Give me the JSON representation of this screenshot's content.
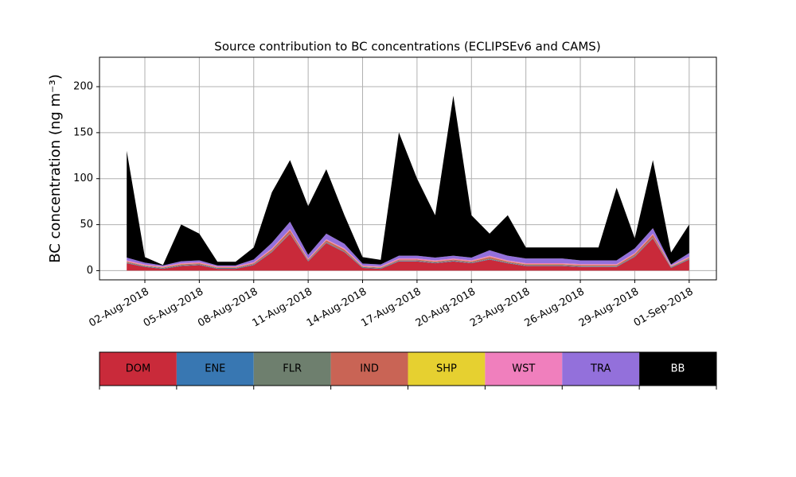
{
  "chart_data": {
    "type": "stacked_area",
    "title": "Source contribution to BC concentrations (ECLIPSEv6 and CAMS)",
    "y_label": "BC concentration (ng m⁻³)",
    "x": [
      "2018-08-01",
      "2018-08-02",
      "2018-08-03",
      "2018-08-04",
      "2018-08-05",
      "2018-08-06",
      "2018-08-07",
      "2018-08-08",
      "2018-08-09",
      "2018-08-10",
      "2018-08-11",
      "2018-08-12",
      "2018-08-13",
      "2018-08-14",
      "2018-08-15",
      "2018-08-16",
      "2018-08-17",
      "2018-08-18",
      "2018-08-19",
      "2018-08-20",
      "2018-08-21",
      "2018-08-22",
      "2018-08-23",
      "2018-08-24",
      "2018-08-25",
      "2018-08-26",
      "2018-08-27",
      "2018-08-28",
      "2018-08-29",
      "2018-08-30",
      "2018-08-31",
      "2018-09-01"
    ],
    "series": [
      {
        "name": "DOM",
        "color": "#c92a3a",
        "values": [
          8,
          4,
          2,
          5,
          6,
          2,
          2,
          6,
          20,
          40,
          10,
          30,
          20,
          3,
          2,
          10,
          10,
          8,
          10,
          8,
          12,
          8,
          5,
          5,
          5,
          4,
          4,
          4,
          15,
          35,
          3,
          12
        ]
      },
      {
        "name": "ENE",
        "color": "#3877b2",
        "values": [
          0.5,
          0.5,
          0.5,
          0.5,
          0.5,
          0.5,
          0.5,
          0.5,
          0.5,
          0.5,
          0.5,
          0.5,
          0.5,
          0.5,
          0.5,
          0.5,
          0.5,
          0.5,
          0.5,
          0.5,
          0.5,
          0.5,
          0.5,
          0.5,
          0.5,
          0.5,
          0.5,
          0.5,
          0.5,
          0.5,
          0.5,
          0.5
        ]
      },
      {
        "name": "FLR",
        "color": "#6e7f6e",
        "values": [
          0.5,
          0.5,
          0.5,
          0.5,
          0.5,
          0.5,
          0.5,
          0.5,
          0.5,
          0.5,
          0.5,
          0.5,
          0.5,
          0.5,
          0.5,
          0.5,
          0.5,
          0.5,
          0.5,
          0.5,
          0.5,
          0.5,
          0.5,
          0.5,
          0.5,
          0.5,
          0.5,
          0.5,
          0.5,
          0.5,
          0.5,
          0.5
        ]
      },
      {
        "name": "IND",
        "color": "#c96455",
        "values": [
          1,
          0.5,
          0.5,
          1,
          1,
          0.5,
          0.5,
          1,
          2,
          3,
          1,
          2,
          2,
          0.5,
          0.5,
          1,
          1,
          1,
          1,
          1,
          2,
          1,
          1,
          1,
          1,
          1,
          1,
          1,
          2,
          3,
          0.5,
          1
        ]
      },
      {
        "name": "SHP",
        "color": "#e6d030",
        "values": [
          0.2,
          0.2,
          0.2,
          0.2,
          0.2,
          0.2,
          0.2,
          0.2,
          0.2,
          0.2,
          0.2,
          0.2,
          0.2,
          0.2,
          0.2,
          0.2,
          0.2,
          0.2,
          0.2,
          0.2,
          0.2,
          0.2,
          0.2,
          0.2,
          0.2,
          0.2,
          0.2,
          0.2,
          0.2,
          0.2,
          0.2,
          0.2
        ]
      },
      {
        "name": "WST",
        "color": "#f07fbd",
        "values": [
          1,
          1,
          1,
          1,
          1,
          1,
          1,
          1,
          1,
          1,
          1,
          1,
          1,
          1,
          1,
          1,
          1,
          1,
          1,
          1,
          1,
          1,
          1,
          1,
          1,
          1,
          1,
          1,
          1,
          1,
          1,
          1
        ]
      },
      {
        "name": "TRA",
        "color": "#9370db",
        "values": [
          3,
          2,
          1,
          2,
          2,
          1,
          1,
          3,
          6,
          8,
          4,
          6,
          5,
          2,
          2,
          3,
          3,
          3,
          3,
          3,
          6,
          5,
          5,
          5,
          5,
          4,
          4,
          4,
          5,
          6,
          1,
          4
        ]
      },
      {
        "name": "BB",
        "color": "#000000",
        "values": [
          116,
          6,
          0.5,
          40,
          29,
          4,
          4,
          13,
          55,
          67,
          53,
          70,
          31,
          7,
          5,
          134,
          84,
          46,
          174,
          46,
          18,
          44,
          12,
          12,
          12,
          14,
          14,
          79,
          11,
          74,
          13,
          31
        ]
      }
    ],
    "xlim": [
      "2018-07-30T12:00",
      "2018-09-02T12:00"
    ],
    "xticks": [
      {
        "value": "2018-08-02",
        "label": "02-Aug-2018"
      },
      {
        "value": "2018-08-05",
        "label": "05-Aug-2018"
      },
      {
        "value": "2018-08-08",
        "label": "08-Aug-2018"
      },
      {
        "value": "2018-08-11",
        "label": "11-Aug-2018"
      },
      {
        "value": "2018-08-14",
        "label": "14-Aug-2018"
      },
      {
        "value": "2018-08-17",
        "label": "17-Aug-2018"
      },
      {
        "value": "2018-08-20",
        "label": "20-Aug-2018"
      },
      {
        "value": "2018-08-23",
        "label": "23-Aug-2018"
      },
      {
        "value": "2018-08-26",
        "label": "26-Aug-2018"
      },
      {
        "value": "2018-08-29",
        "label": "29-Aug-2018"
      },
      {
        "value": "2018-09-01",
        "label": "01-Sep-2018"
      }
    ],
    "ylim": [
      -10,
      232
    ],
    "yticks": [
      0,
      50,
      100,
      150,
      200
    ],
    "grid": true,
    "legend": "bottom"
  }
}
